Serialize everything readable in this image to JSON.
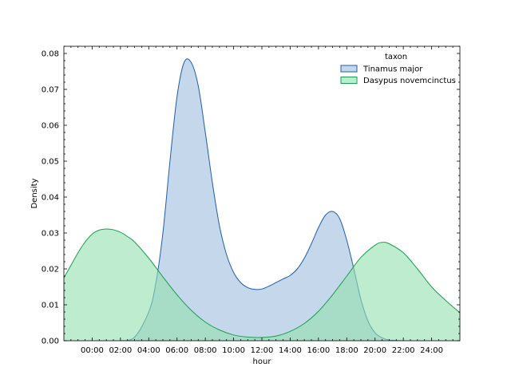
{
  "chart_data": {
    "type": "area",
    "xlabel": "hour",
    "ylabel": "Density",
    "xlim": [
      -2.0,
      26.0
    ],
    "ylim": [
      0,
      0.082
    ],
    "x_ticks": [
      {
        "value": 0,
        "label": "00:00"
      },
      {
        "value": 2,
        "label": "02:00"
      },
      {
        "value": 4,
        "label": "04:00"
      },
      {
        "value": 6,
        "label": "06:00"
      },
      {
        "value": 8,
        "label": "08:00"
      },
      {
        "value": 10,
        "label": "10:00"
      },
      {
        "value": 12,
        "label": "12:00"
      },
      {
        "value": 14,
        "label": "14:00"
      },
      {
        "value": 16,
        "label": "16:00"
      },
      {
        "value": 18,
        "label": "18:00"
      },
      {
        "value": 20,
        "label": "20:00"
      },
      {
        "value": 22,
        "label": "22:00"
      },
      {
        "value": 24,
        "label": "24:00"
      }
    ],
    "y_ticks": [
      0.0,
      0.01,
      0.02,
      0.03,
      0.04,
      0.05,
      0.06,
      0.07,
      0.08
    ],
    "y_tick_labels": [
      "0.00",
      "0.01",
      "0.02",
      "0.03",
      "0.04",
      "0.05",
      "0.06",
      "0.07",
      "0.08"
    ],
    "legend": {
      "title": "taxon",
      "placement": "top-right"
    },
    "grid": false,
    "series": [
      {
        "name": "Tinamus major",
        "line_color": "#1f5fa8",
        "fill_color": "#9ebcdc",
        "x": [
          2.0,
          3.0,
          4.0,
          4.5,
          5.0,
          5.5,
          6.0,
          6.5,
          7.0,
          7.5,
          8.0,
          8.5,
          9.0,
          9.5,
          10.0,
          10.5,
          11.0,
          11.5,
          12.0,
          12.5,
          13.0,
          13.5,
          14.0,
          14.5,
          15.0,
          15.5,
          16.0,
          16.5,
          17.0,
          17.5,
          18.0,
          18.5,
          19.0,
          19.5,
          20.0,
          20.5,
          21.0,
          22.0
        ],
        "y": [
          0.0,
          0.001,
          0.008,
          0.016,
          0.03,
          0.05,
          0.068,
          0.0775,
          0.0775,
          0.071,
          0.058,
          0.044,
          0.032,
          0.024,
          0.019,
          0.0162,
          0.0148,
          0.0143,
          0.0144,
          0.0152,
          0.0162,
          0.0172,
          0.0182,
          0.02,
          0.023,
          0.027,
          0.0315,
          0.035,
          0.036,
          0.034,
          0.028,
          0.02,
          0.0115,
          0.0055,
          0.0022,
          0.0008,
          0.0002,
          0.0
        ]
      },
      {
        "name": "Dasypus novemcinctus",
        "line_color": "#1a9e50",
        "fill_color": "#93e0ae",
        "x": [
          -2.0,
          -1.5,
          -1.0,
          -0.5,
          0.0,
          0.5,
          1.0,
          1.5,
          2.0,
          2.5,
          3.0,
          4.0,
          5.0,
          6.0,
          7.0,
          8.0,
          9.0,
          10.0,
          11.0,
          12.0,
          13.0,
          14.0,
          15.0,
          16.0,
          17.0,
          18.0,
          19.0,
          20.0,
          20.5,
          21.0,
          22.0,
          23.0,
          24.0,
          25.0,
          26.0
        ],
        "y": [
          0.0175,
          0.021,
          0.0245,
          0.0275,
          0.0297,
          0.0308,
          0.0311,
          0.0309,
          0.0302,
          0.029,
          0.0275,
          0.023,
          0.0178,
          0.0128,
          0.0085,
          0.0052,
          0.003,
          0.0016,
          0.001,
          0.0009,
          0.0013,
          0.0026,
          0.0048,
          0.0082,
          0.0128,
          0.018,
          0.0232,
          0.0266,
          0.0274,
          0.027,
          0.0245,
          0.02,
          0.015,
          0.0112,
          0.0078
        ]
      }
    ]
  }
}
